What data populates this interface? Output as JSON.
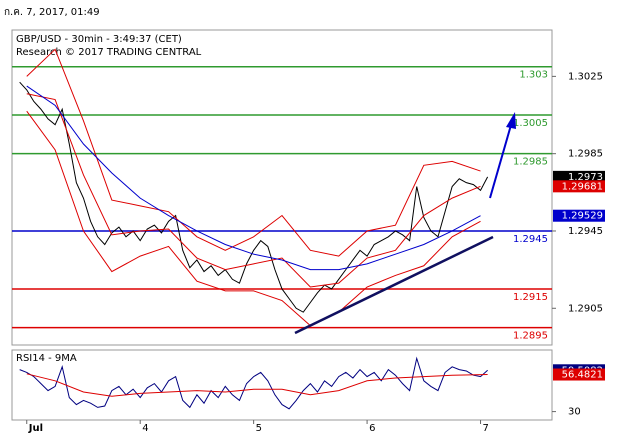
{
  "date": "ก.ค. 7, 2017, 01:49",
  "chart_data": [
    {
      "type": "line",
      "title": "GBP/USD - 30min - 3:49:37 (CET)",
      "subtitle": "Research © 2017 TRADING CENTRAL",
      "xlim": [
        -0.13,
        4.63
      ],
      "ylim": [
        1.2886,
        1.3049
      ],
      "yticks": [
        1.2905,
        1.2945,
        1.2985,
        1.3025
      ],
      "levels": [
        {
          "value": 1.303,
          "color": "#2f9a2f"
        },
        {
          "value": 1.3005,
          "color": "#2f9a2f"
        },
        {
          "value": 1.2985,
          "color": "#2f9a2f"
        },
        {
          "value": 1.2945,
          "color": "#0000cc"
        },
        {
          "value": 1.2915,
          "color": "#dd0000"
        },
        {
          "value": 1.2895,
          "color": "#dd0000"
        }
      ],
      "series": [
        {
          "color": "#000000",
          "last_value_tag": true,
          "x": [
            -0.0625,
            0,
            0.0625,
            0.125,
            0.1875,
            0.25,
            0.3125,
            0.375,
            0.4375,
            0.5,
            0.5625,
            0.625,
            0.6875,
            0.75,
            0.8125,
            0.875,
            0.9375,
            1,
            1.0625,
            1.125,
            1.1875,
            1.25,
            1.3125,
            1.375,
            1.4375,
            1.5,
            1.5625,
            1.625,
            1.6875,
            1.75,
            1.8125,
            1.875,
            1.9375,
            2,
            2.0625,
            2.125,
            2.1875,
            2.25,
            2.3125,
            2.375,
            2.4375,
            2.5,
            2.5625,
            2.625,
            2.6875,
            2.75,
            2.8125,
            2.875,
            2.9375,
            3,
            3.0625,
            3.125,
            3.1875,
            3.25,
            3.3125,
            3.375,
            3.4375,
            3.5,
            3.5625,
            3.625,
            3.6875,
            3.75,
            3.8125,
            3.875,
            3.9375,
            4,
            4.0625
          ],
          "values": [
            1.3022,
            1.3018,
            1.3012,
            1.3008,
            1.3003,
            1.3,
            1.3008,
            1.299,
            1.297,
            1.2962,
            1.295,
            1.2942,
            1.2938,
            1.2944,
            1.2947,
            1.2942,
            1.2945,
            1.294,
            1.2946,
            1.2948,
            1.2944,
            1.295,
            1.2953,
            1.2935,
            1.2926,
            1.293,
            1.2924,
            1.2927,
            1.2922,
            1.2925,
            1.292,
            1.2918,
            1.2928,
            1.2935,
            1.294,
            1.2937,
            1.2925,
            1.2915,
            1.291,
            1.2905,
            1.2903,
            1.2908,
            1.2913,
            1.2917,
            1.2915,
            1.292,
            1.2925,
            1.293,
            1.2935,
            1.2932,
            1.2938,
            1.294,
            1.2942,
            1.2945,
            1.2943,
            1.294,
            1.2968,
            1.2952,
            1.2945,
            1.2942,
            1.2955,
            1.2968,
            1.2972,
            1.297,
            1.2969,
            1.2966,
            1.2973
          ]
        },
        {
          "color": "#dd0000",
          "x": [
            0,
            0.25,
            0.5,
            0.75,
            1,
            1.25,
            1.5,
            1.75,
            2,
            2.25,
            2.5,
            2.75,
            3,
            3.25,
            3.5,
            3.75,
            4
          ],
          "values": [
            1.3025,
            1.3039,
            1.3002,
            1.2961,
            1.2958,
            1.2955,
            1.2942,
            1.2935,
            1.2942,
            1.2953,
            1.2935,
            1.2932,
            1.2945,
            1.2948,
            1.2979,
            1.2981,
            1.2976
          ]
        },
        {
          "color": "#dd0000",
          "last_value_tag": true,
          "x": [
            0,
            0.25,
            0.5,
            0.75,
            1,
            1.25,
            1.5,
            1.75,
            2,
            2.25,
            2.5,
            2.75,
            3,
            3.25,
            3.5,
            3.75,
            4
          ],
          "values": [
            1.3016,
            1.3013,
            1.2974,
            1.2943,
            1.2945,
            1.2946,
            1.2931,
            1.2925,
            1.2928,
            1.2931,
            1.2916,
            1.2918,
            1.2931,
            1.2935,
            1.2953,
            1.2962,
            1.29681
          ]
        },
        {
          "color": "#dd0000",
          "x": [
            0,
            0.25,
            0.5,
            0.75,
            1,
            1.25,
            1.5,
            1.75,
            2,
            2.25,
            2.5,
            2.75,
            3,
            3.25,
            3.5,
            3.75,
            4
          ],
          "values": [
            1.3007,
            1.2987,
            1.2945,
            1.2924,
            1.2932,
            1.2937,
            1.2919,
            1.2914,
            1.2914,
            1.2909,
            1.2896,
            1.2903,
            1.2916,
            1.2922,
            1.2927,
            1.2942,
            1.295
          ]
        },
        {
          "color": "#0000cc",
          "last_value_tag": true,
          "x": [
            0,
            0.25,
            0.5,
            0.75,
            1,
            1.25,
            1.5,
            1.75,
            2,
            2.25,
            2.5,
            2.75,
            3,
            3.25,
            3.5,
            3.75,
            4
          ],
          "values": [
            1.302,
            1.301,
            1.299,
            1.2975,
            1.2962,
            1.2953,
            1.2945,
            1.2938,
            1.2933,
            1.293,
            1.2925,
            1.2925,
            1.2928,
            1.2933,
            1.2938,
            1.2945,
            1.29529
          ]
        }
      ]
    },
    {
      "type": "line",
      "title": "RSI14 - 9MA",
      "xlim": [
        -0.13,
        4.63
      ],
      "ylim": [
        24,
        74
      ],
      "yticks": [
        30
      ],
      "xticks": [
        {
          "value": 0,
          "label": "Jul"
        },
        {
          "value": 1,
          "label": "4"
        },
        {
          "value": 2,
          "label": "5"
        },
        {
          "value": 3,
          "label": "6"
        },
        {
          "value": 4,
          "label": "7"
        }
      ],
      "series": [
        {
          "color": "#000080",
          "last_value_tag": true,
          "x": [
            -0.0625,
            0,
            0.0625,
            0.125,
            0.1875,
            0.25,
            0.3125,
            0.375,
            0.4375,
            0.5,
            0.5625,
            0.625,
            0.6875,
            0.75,
            0.8125,
            0.875,
            0.9375,
            1,
            1.0625,
            1.125,
            1.1875,
            1.25,
            1.3125,
            1.375,
            1.4375,
            1.5,
            1.5625,
            1.625,
            1.6875,
            1.75,
            1.8125,
            1.875,
            1.9375,
            2,
            2.0625,
            2.125,
            2.1875,
            2.25,
            2.3125,
            2.375,
            2.4375,
            2.5,
            2.5625,
            2.625,
            2.6875,
            2.75,
            2.8125,
            2.875,
            2.9375,
            3,
            3.0625,
            3.125,
            3.1875,
            3.25,
            3.3125,
            3.375,
            3.4375,
            3.5,
            3.5625,
            3.625,
            3.6875,
            3.75,
            3.8125,
            3.875,
            3.9375,
            4,
            4.0625
          ],
          "values": [
            60,
            58,
            55,
            50,
            45,
            48,
            62,
            40,
            35,
            38,
            36,
            33,
            34,
            45,
            48,
            42,
            46,
            40,
            47,
            50,
            44,
            52,
            55,
            38,
            33,
            42,
            36,
            45,
            40,
            48,
            42,
            38,
            50,
            55,
            58,
            52,
            42,
            35,
            32,
            38,
            45,
            50,
            44,
            52,
            48,
            55,
            58,
            54,
            60,
            55,
            58,
            52,
            60,
            56,
            50,
            45,
            68,
            52,
            48,
            45,
            58,
            62,
            60,
            59,
            56,
            55,
            59.5082
          ]
        },
        {
          "color": "#dd0000",
          "last_value_tag": true,
          "x": [
            0,
            0.25,
            0.5,
            0.75,
            1,
            1.25,
            1.5,
            1.75,
            2,
            2.25,
            2.5,
            2.75,
            3,
            3.25,
            3.5,
            3.75,
            4.0625
          ],
          "values": [
            57,
            52,
            44,
            41,
            43,
            44,
            45,
            44,
            46,
            46,
            42,
            45,
            52,
            54,
            55,
            56,
            56.4821
          ]
        }
      ]
    }
  ]
}
